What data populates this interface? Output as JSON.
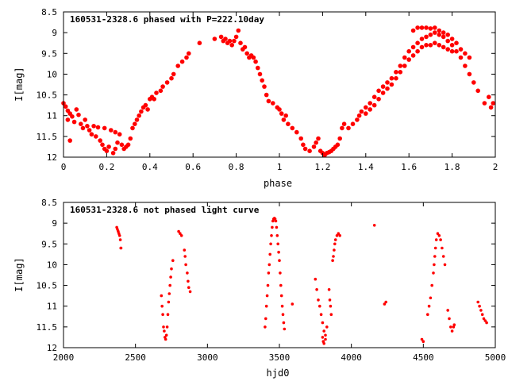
{
  "colors": {
    "points": "#ff0000",
    "axes": "#000000",
    "background": "#ffffff"
  },
  "chart_data": [
    {
      "type": "scatter",
      "title": "160531-2328.6 phased with P=222.10day",
      "xlabel": "phase",
      "ylabel": "I[mag]",
      "xlim": [
        0,
        2
      ],
      "ylim": [
        12,
        8.5
      ],
      "y_inverted": true,
      "grid": false,
      "marker": "filled circle",
      "xticks": [
        "0",
        "0.2",
        "0.4",
        "0.6",
        "0.8",
        "1",
        "1.2",
        "1.4",
        "1.6",
        "1.8",
        "2"
      ],
      "yticks": [
        "8.5",
        "9",
        "9.5",
        "10",
        "10.5",
        "11",
        "11.5",
        "12"
      ],
      "points": [
        [
          0.0,
          10.7
        ],
        [
          0.01,
          10.78
        ],
        [
          0.02,
          10.88
        ],
        [
          0.03,
          10.95
        ],
        [
          0.04,
          11.02
        ],
        [
          0.02,
          11.1
        ],
        [
          0.05,
          11.15
        ],
        [
          0.03,
          11.6
        ],
        [
          0.06,
          10.85
        ],
        [
          0.07,
          10.98
        ],
        [
          0.08,
          11.2
        ],
        [
          0.09,
          11.3
        ],
        [
          0.1,
          11.1
        ],
        [
          0.11,
          11.25
        ],
        [
          0.12,
          11.35
        ],
        [
          0.13,
          11.45
        ],
        [
          0.14,
          11.25
        ],
        [
          0.15,
          11.5
        ],
        [
          0.16,
          11.28
        ],
        [
          0.17,
          11.6
        ],
        [
          0.18,
          11.7
        ],
        [
          0.19,
          11.3
        ],
        [
          0.19,
          11.8
        ],
        [
          0.2,
          11.85
        ],
        [
          0.21,
          11.75
        ],
        [
          0.22,
          11.35
        ],
        [
          0.23,
          11.9
        ],
        [
          0.24,
          11.8
        ],
        [
          0.25,
          11.65
        ],
        [
          0.24,
          11.4
        ],
        [
          0.26,
          11.45
        ],
        [
          0.27,
          11.7
        ],
        [
          0.28,
          11.8
        ],
        [
          0.29,
          11.75
        ],
        [
          0.3,
          11.7
        ],
        [
          0.31,
          11.55
        ],
        [
          0.32,
          11.3
        ],
        [
          0.33,
          11.2
        ],
        [
          0.34,
          11.1
        ],
        [
          0.35,
          11.0
        ],
        [
          0.36,
          10.9
        ],
        [
          0.37,
          10.8
        ],
        [
          0.38,
          10.75
        ],
        [
          0.39,
          10.85
        ],
        [
          0.4,
          10.6
        ],
        [
          0.41,
          10.55
        ],
        [
          0.42,
          10.6
        ],
        [
          0.43,
          10.45
        ],
        [
          0.45,
          10.4
        ],
        [
          0.46,
          10.3
        ],
        [
          0.48,
          10.2
        ],
        [
          0.5,
          10.1
        ],
        [
          0.51,
          10.0
        ],
        [
          0.53,
          9.8
        ],
        [
          0.55,
          9.7
        ],
        [
          0.57,
          9.6
        ],
        [
          0.58,
          9.5
        ],
        [
          0.63,
          9.25
        ],
        [
          0.7,
          9.15
        ],
        [
          0.73,
          9.1
        ],
        [
          0.74,
          9.2
        ],
        [
          0.75,
          9.15
        ],
        [
          0.76,
          9.25
        ],
        [
          0.77,
          9.2
        ],
        [
          0.78,
          9.3
        ],
        [
          0.79,
          9.2
        ],
        [
          0.8,
          9.1
        ],
        [
          0.81,
          8.95
        ],
        [
          0.82,
          9.25
        ],
        [
          0.83,
          9.4
        ],
        [
          0.84,
          9.35
        ],
        [
          0.85,
          9.5
        ],
        [
          0.86,
          9.6
        ],
        [
          0.87,
          9.55
        ],
        [
          0.88,
          9.6
        ],
        [
          0.89,
          9.7
        ],
        [
          0.9,
          9.85
        ],
        [
          0.91,
          10.0
        ],
        [
          0.92,
          10.15
        ],
        [
          0.93,
          10.3
        ],
        [
          0.94,
          10.5
        ],
        [
          0.95,
          10.65
        ],
        [
          0.97,
          10.7
        ],
        [
          0.99,
          10.8
        ],
        [
          1.0,
          10.85
        ],
        [
          1.01,
          10.95
        ],
        [
          1.02,
          11.1
        ],
        [
          1.03,
          11.0
        ],
        [
          1.04,
          11.2
        ],
        [
          1.06,
          11.3
        ],
        [
          1.08,
          11.4
        ],
        [
          1.1,
          11.55
        ],
        [
          1.11,
          11.7
        ],
        [
          1.12,
          11.8
        ],
        [
          1.14,
          11.85
        ],
        [
          1.16,
          11.75
        ],
        [
          1.17,
          11.65
        ],
        [
          1.18,
          11.55
        ],
        [
          1.19,
          11.85
        ],
        [
          1.2,
          11.9
        ],
        [
          1.21,
          11.95
        ],
        [
          1.22,
          11.9
        ],
        [
          1.23,
          11.88
        ],
        [
          1.24,
          11.85
        ],
        [
          1.25,
          11.8
        ],
        [
          1.26,
          11.75
        ],
        [
          1.27,
          11.7
        ],
        [
          1.28,
          11.55
        ],
        [
          1.29,
          11.3
        ],
        [
          1.3,
          11.2
        ],
        [
          1.32,
          11.3
        ],
        [
          1.34,
          11.2
        ],
        [
          1.36,
          11.1
        ],
        [
          1.37,
          11.0
        ],
        [
          1.38,
          10.9
        ],
        [
          1.4,
          10.8
        ],
        [
          1.42,
          10.7
        ],
        [
          1.44,
          10.55
        ],
        [
          1.46,
          10.4
        ],
        [
          1.48,
          10.3
        ],
        [
          1.5,
          10.2
        ],
        [
          1.52,
          10.1
        ],
        [
          1.54,
          9.95
        ],
        [
          1.56,
          9.8
        ],
        [
          1.58,
          9.6
        ],
        [
          1.6,
          9.45
        ],
        [
          1.62,
          9.35
        ],
        [
          1.64,
          9.25
        ],
        [
          1.66,
          9.15
        ],
        [
          1.68,
          9.1
        ],
        [
          1.7,
          9.05
        ],
        [
          1.72,
          9.0
        ],
        [
          1.74,
          9.05
        ],
        [
          1.76,
          9.1
        ],
        [
          1.78,
          9.2
        ],
        [
          1.8,
          9.3
        ],
        [
          1.82,
          9.45
        ],
        [
          1.84,
          9.6
        ],
        [
          1.86,
          9.8
        ],
        [
          1.88,
          10.0
        ],
        [
          1.9,
          10.2
        ],
        [
          1.92,
          10.4
        ],
        [
          1.95,
          10.7
        ],
        [
          1.98,
          10.8
        ],
        [
          1.62,
          8.95
        ],
        [
          1.64,
          8.88
        ],
        [
          1.66,
          8.88
        ],
        [
          1.68,
          8.88
        ],
        [
          1.7,
          8.9
        ],
        [
          1.72,
          8.88
        ],
        [
          1.74,
          8.95
        ],
        [
          1.76,
          9.0
        ],
        [
          1.78,
          9.05
        ],
        [
          1.8,
          9.15
        ],
        [
          1.82,
          9.25
        ],
        [
          1.84,
          9.4
        ],
        [
          1.86,
          9.5
        ],
        [
          1.88,
          9.6
        ],
        [
          1.4,
          10.95
        ],
        [
          1.42,
          10.85
        ],
        [
          1.44,
          10.75
        ],
        [
          1.46,
          10.6
        ],
        [
          1.48,
          10.45
        ],
        [
          1.5,
          10.35
        ],
        [
          1.52,
          10.25
        ],
        [
          1.54,
          10.1
        ],
        [
          1.56,
          9.95
        ],
        [
          1.58,
          9.8
        ],
        [
          1.6,
          9.65
        ],
        [
          1.62,
          9.55
        ],
        [
          1.64,
          9.45
        ],
        [
          1.66,
          9.35
        ],
        [
          1.68,
          9.3
        ],
        [
          1.7,
          9.3
        ],
        [
          1.72,
          9.25
        ],
        [
          1.74,
          9.3
        ],
        [
          1.76,
          9.35
        ],
        [
          1.78,
          9.4
        ],
        [
          1.8,
          9.45
        ],
        [
          1.99,
          10.7
        ],
        [
          1.97,
          10.55
        ]
      ]
    },
    {
      "type": "scatter",
      "title": "160531-2328.6 not phased light curve",
      "xlabel": "hjd0",
      "ylabel": "I[mag]",
      "xlim": [
        2000,
        5000
      ],
      "ylim": [
        12,
        8.5
      ],
      "y_inverted": true,
      "grid": false,
      "marker": "small filled circle",
      "xticks": [
        "2000",
        "2500",
        "3000",
        "3500",
        "4000",
        "4500",
        "5000"
      ],
      "yticks": [
        "8.5",
        "9",
        "9.5",
        "10",
        "10.5",
        "11",
        "11.5",
        "12"
      ],
      "points": [
        [
          2370,
          9.1
        ],
        [
          2375,
          9.15
        ],
        [
          2380,
          9.2
        ],
        [
          2385,
          9.25
        ],
        [
          2390,
          9.3
        ],
        [
          2395,
          9.4
        ],
        [
          2398,
          9.6
        ],
        [
          2400,
          9.6
        ],
        [
          2680,
          10.75
        ],
        [
          2685,
          11.0
        ],
        [
          2690,
          11.2
        ],
        [
          2695,
          11.5
        ],
        [
          2700,
          11.6
        ],
        [
          2705,
          11.75
        ],
        [
          2710,
          11.8
        ],
        [
          2715,
          11.7
        ],
        [
          2720,
          11.5
        ],
        [
          2725,
          11.2
        ],
        [
          2730,
          10.9
        ],
        [
          2735,
          10.7
        ],
        [
          2740,
          10.5
        ],
        [
          2745,
          10.3
        ],
        [
          2750,
          10.1
        ],
        [
          2760,
          9.9
        ],
        [
          2800,
          9.2
        ],
        [
          2810,
          9.25
        ],
        [
          2820,
          9.3
        ],
        [
          2840,
          9.65
        ],
        [
          2845,
          9.8
        ],
        [
          2850,
          10.0
        ],
        [
          2860,
          10.2
        ],
        [
          2865,
          10.4
        ],
        [
          2870,
          10.55
        ],
        [
          2880,
          10.65
        ],
        [
          3400,
          11.5
        ],
        [
          3405,
          11.3
        ],
        [
          3410,
          11.0
        ],
        [
          3415,
          10.75
        ],
        [
          3420,
          10.5
        ],
        [
          3425,
          10.2
        ],
        [
          3430,
          10.0
        ],
        [
          3435,
          9.75
        ],
        [
          3440,
          9.5
        ],
        [
          3445,
          9.3
        ],
        [
          3450,
          9.1
        ],
        [
          3455,
          8.95
        ],
        [
          3460,
          8.9
        ],
        [
          3465,
          8.88
        ],
        [
          3470,
          8.9
        ],
        [
          3475,
          8.95
        ],
        [
          3480,
          9.1
        ],
        [
          3485,
          9.3
        ],
        [
          3490,
          9.5
        ],
        [
          3495,
          9.7
        ],
        [
          3500,
          9.9
        ],
        [
          3505,
          10.2
        ],
        [
          3510,
          10.5
        ],
        [
          3515,
          10.75
        ],
        [
          3520,
          11.0
        ],
        [
          3525,
          11.2
        ],
        [
          3530,
          11.4
        ],
        [
          3535,
          11.55
        ],
        [
          3590,
          10.95
        ],
        [
          3750,
          10.35
        ],
        [
          3760,
          10.6
        ],
        [
          3770,
          10.85
        ],
        [
          3780,
          11.0
        ],
        [
          3790,
          11.2
        ],
        [
          3800,
          11.4
        ],
        [
          3810,
          11.6
        ],
        [
          3820,
          11.7
        ],
        [
          3830,
          11.5
        ],
        [
          3800,
          11.75
        ],
        [
          3805,
          11.85
        ],
        [
          3810,
          11.9
        ],
        [
          3820,
          11.8
        ],
        [
          3845,
          10.6
        ],
        [
          3850,
          10.85
        ],
        [
          3855,
          11.0
        ],
        [
          3860,
          11.2
        ],
        [
          3870,
          9.9
        ],
        [
          3875,
          9.8
        ],
        [
          3880,
          9.65
        ],
        [
          3885,
          9.5
        ],
        [
          3890,
          9.4
        ],
        [
          3900,
          9.3
        ],
        [
          3910,
          9.25
        ],
        [
          3920,
          9.3
        ],
        [
          4160,
          9.05
        ],
        [
          4230,
          10.95
        ],
        [
          4240,
          10.9
        ],
        [
          4490,
          11.8
        ],
        [
          4500,
          11.85
        ],
        [
          4530,
          11.2
        ],
        [
          4540,
          11.0
        ],
        [
          4550,
          10.8
        ],
        [
          4560,
          10.5
        ],
        [
          4570,
          10.2
        ],
        [
          4575,
          10.0
        ],
        [
          4580,
          9.8
        ],
        [
          4585,
          9.6
        ],
        [
          4590,
          9.4
        ],
        [
          4600,
          9.25
        ],
        [
          4610,
          9.3
        ],
        [
          4620,
          9.4
        ],
        [
          4630,
          9.6
        ],
        [
          4640,
          9.8
        ],
        [
          4650,
          10.0
        ],
        [
          4670,
          11.1
        ],
        [
          4680,
          11.3
        ],
        [
          4690,
          11.5
        ],
        [
          4700,
          11.6
        ],
        [
          4710,
          11.5
        ],
        [
          4715,
          11.45
        ],
        [
          4880,
          10.9
        ],
        [
          4890,
          11.0
        ],
        [
          4900,
          11.1
        ],
        [
          4910,
          11.2
        ],
        [
          4920,
          11.3
        ],
        [
          4930,
          11.35
        ],
        [
          4940,
          11.4
        ]
      ]
    }
  ]
}
